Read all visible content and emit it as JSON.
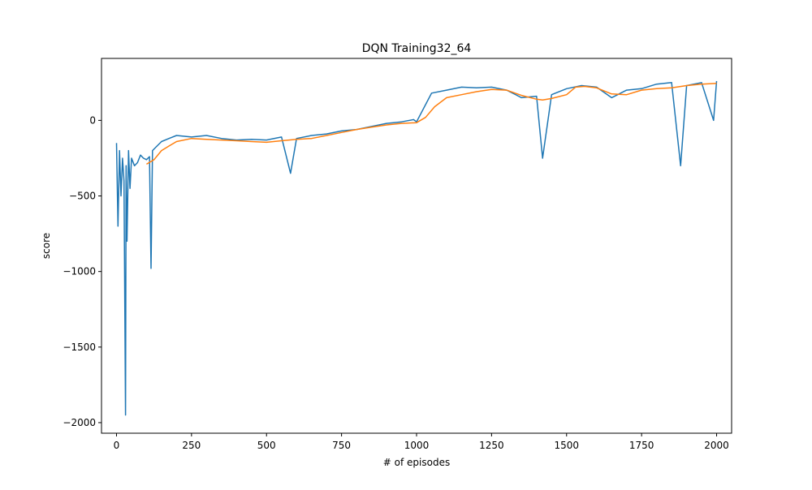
{
  "chart_data": {
    "type": "line",
    "title": "DQN Training32_64",
    "xlabel": "# of episodes",
    "ylabel": "score",
    "xlim": [
      -50,
      2050
    ],
    "ylim": [
      -2070,
      410
    ],
    "xticks": [
      0,
      250,
      500,
      750,
      1000,
      1250,
      1500,
      1750,
      2000
    ],
    "xtick_labels": [
      "0",
      "250",
      "500",
      "750",
      "1000",
      "1250",
      "1500",
      "1750",
      "2000"
    ],
    "yticks": [
      -2000,
      -1500,
      -1000,
      -500,
      0
    ],
    "ytick_labels": [
      "−2000",
      "−1500",
      "−1000",
      "−500",
      "0"
    ],
    "grid": false,
    "legend": "none",
    "series": [
      {
        "color": "#1f77b4",
        "x": [
          0,
          5,
          10,
          15,
          20,
          25,
          30,
          32,
          35,
          40,
          45,
          50,
          60,
          70,
          80,
          90,
          100,
          110,
          115,
          120,
          130,
          150,
          175,
          200,
          250,
          300,
          350,
          400,
          450,
          500,
          550,
          580,
          600,
          650,
          700,
          750,
          800,
          850,
          900,
          950,
          990,
          1000,
          1050,
          1100,
          1150,
          1200,
          1250,
          1300,
          1350,
          1400,
          1420,
          1450,
          1500,
          1550,
          1600,
          1650,
          1700,
          1750,
          1800,
          1850,
          1880,
          1900,
          1950,
          1990,
          2000
        ],
        "y": [
          -150,
          -700,
          -200,
          -500,
          -250,
          -400,
          -1950,
          -300,
          -800,
          -200,
          -450,
          -250,
          -300,
          -280,
          -230,
          -250,
          -260,
          -240,
          -980,
          -200,
          -180,
          -140,
          -120,
          -100,
          -110,
          -100,
          -120,
          -130,
          -125,
          -130,
          -110,
          -350,
          -120,
          -100,
          -90,
          -70,
          -60,
          -40,
          -20,
          -10,
          5,
          -10,
          180,
          200,
          220,
          215,
          220,
          200,
          150,
          160,
          -250,
          170,
          210,
          230,
          220,
          150,
          200,
          210,
          240,
          250,
          -300,
          230,
          250,
          0,
          260
        ]
      },
      {
        "color": "#ff7f0e",
        "x": [
          100,
          125,
          150,
          175,
          200,
          250,
          300,
          350,
          400,
          450,
          500,
          550,
          600,
          650,
          700,
          750,
          800,
          850,
          900,
          950,
          1000,
          1030,
          1060,
          1100,
          1150,
          1200,
          1250,
          1300,
          1350,
          1400,
          1420,
          1450,
          1500,
          1530,
          1560,
          1600,
          1650,
          1700,
          1750,
          1800,
          1850,
          1900,
          1950,
          2000
        ],
        "y": [
          -290,
          -260,
          -200,
          -170,
          -140,
          -120,
          -125,
          -130,
          -135,
          -140,
          -145,
          -135,
          -125,
          -120,
          -100,
          -80,
          -60,
          -45,
          -30,
          -20,
          -15,
          20,
          90,
          150,
          170,
          190,
          205,
          200,
          165,
          140,
          135,
          145,
          170,
          220,
          225,
          215,
          175,
          170,
          200,
          210,
          215,
          230,
          240,
          245
        ]
      }
    ]
  }
}
